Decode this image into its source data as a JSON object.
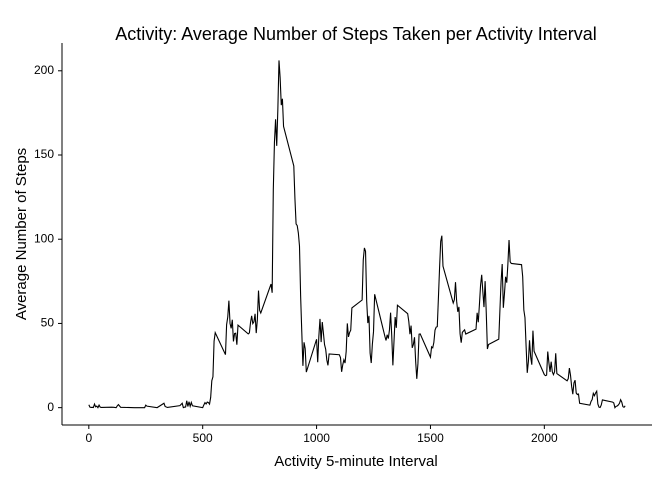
{
  "chart_data": {
    "type": "line",
    "title": "Activity: Average Number of Steps Taken per Activity Interval",
    "x_label": "Activity 5-minute Interval",
    "y_label": "Average Number of Steps",
    "xlim": [
      -117.75,
      2472.75
    ],
    "xticks": [
      0,
      500,
      1000,
      1500,
      2000
    ],
    "ylim": [
      -10.3,
      216.5
    ],
    "yticks": [
      0,
      50,
      100,
      150,
      200
    ],
    "series": [
      {
        "color": "#000000",
        "x": [
          0,
          5,
          10,
          15,
          20,
          25,
          30,
          35,
          40,
          45,
          50,
          55,
          100,
          110,
          120,
          125,
          130,
          140,
          200,
          230,
          245,
          250,
          255,
          300,
          330,
          335,
          345,
          400,
          410,
          415,
          420,
          425,
          430,
          435,
          440,
          445,
          450,
          455,
          500,
          505,
          510,
          515,
          520,
          525,
          530,
          535,
          540,
          545,
          550,
          555,
          600,
          605,
          610,
          615,
          620,
          625,
          630,
          635,
          640,
          645,
          650,
          655,
          700,
          705,
          710,
          715,
          720,
          725,
          730,
          735,
          740,
          745,
          750,
          755,
          800,
          805,
          810,
          815,
          820,
          825,
          830,
          835,
          840,
          845,
          850,
          855,
          900,
          905,
          910,
          915,
          920,
          925,
          930,
          935,
          940,
          945,
          950,
          955,
          1000,
          1005,
          1010,
          1015,
          1020,
          1025,
          1030,
          1035,
          1040,
          1045,
          1050,
          1055,
          1100,
          1105,
          1110,
          1115,
          1120,
          1125,
          1130,
          1135,
          1140,
          1145,
          1150,
          1155,
          1200,
          1205,
          1210,
          1215,
          1220,
          1225,
          1230,
          1235,
          1240,
          1245,
          1250,
          1255,
          1300,
          1305,
          1310,
          1315,
          1320,
          1325,
          1330,
          1335,
          1340,
          1345,
          1350,
          1355,
          1400,
          1405,
          1410,
          1415,
          1420,
          1425,
          1430,
          1435,
          1440,
          1445,
          1450,
          1455,
          1500,
          1505,
          1510,
          1515,
          1520,
          1525,
          1530,
          1535,
          1540,
          1545,
          1550,
          1555,
          1600,
          1605,
          1610,
          1615,
          1620,
          1625,
          1630,
          1635,
          1640,
          1645,
          1650,
          1655,
          1700,
          1705,
          1710,
          1715,
          1720,
          1725,
          1730,
          1735,
          1740,
          1745,
          1750,
          1755,
          1800,
          1805,
          1810,
          1815,
          1820,
          1825,
          1830,
          1835,
          1840,
          1845,
          1850,
          1855,
          1900,
          1905,
          1910,
          1915,
          1920,
          1925,
          1930,
          1935,
          1940,
          1945,
          1950,
          1955,
          2000,
          2005,
          2010,
          2015,
          2020,
          2025,
          2030,
          2035,
          2040,
          2045,
          2050,
          2055,
          2100,
          2105,
          2110,
          2115,
          2120,
          2125,
          2130,
          2135,
          2140,
          2145,
          2150,
          2155,
          2200,
          2205,
          2210,
          2215,
          2220,
          2225,
          2230,
          2235,
          2240,
          2245,
          2250,
          2255,
          2300,
          2305,
          2310,
          2315,
          2320,
          2325,
          2330,
          2335,
          2340,
          2345,
          2350,
          2355
        ],
        "values": [
          1.7,
          0.3,
          0.1,
          0.2,
          0.1,
          2.1,
          0.5,
          0.9,
          0,
          1.5,
          0.3,
          0.1,
          0.3,
          0.2,
          0,
          1.1,
          1.8,
          0.2,
          0,
          0,
          0,
          1.5,
          0.9,
          0,
          2.6,
          0.7,
          0.1,
          1.2,
          2.6,
          0,
          0.3,
          0.4,
          4.1,
          0.7,
          3.5,
          0.8,
          3.1,
          1.1,
          0,
          1.6,
          3,
          2.2,
          3.3,
          3,
          2.1,
          6.1,
          16,
          18.3,
          39.5,
          44.5,
          31.5,
          49.3,
          53.8,
          63.5,
          50,
          47.1,
          52.2,
          39.3,
          44,
          44.2,
          37.4,
          49,
          43.8,
          44.4,
          50.5,
          54.5,
          49.9,
          51,
          55.7,
          44.3,
          52.3,
          69.5,
          57.8,
          56.2,
          73.4,
          68.2,
          129.4,
          157.5,
          171.2,
          155.4,
          177.3,
          206.2,
          195.9,
          179.6,
          183.4,
          167,
          143.5,
          124,
          109.1,
          108.1,
          103.7,
          95.9,
          66.2,
          45.2,
          24.8,
          38.8,
          35,
          21.1,
          40.6,
          27,
          42.4,
          52.7,
          38.9,
          50.8,
          44.3,
          37.4,
          34.7,
          28.3,
          25.1,
          31.9,
          31.4,
          29.7,
          21.3,
          25.5,
          28.4,
          26.5,
          33.4,
          50,
          42,
          44.6,
          46,
          59.2,
          63.9,
          87.7,
          94.8,
          92.8,
          63.4,
          50.2,
          54.5,
          32.4,
          26.5,
          37.7,
          45.1,
          67.3,
          42.3,
          39.9,
          43.3,
          41,
          46.2,
          56.4,
          42.8,
          25.1,
          39.5,
          53.8,
          47.4,
          60.8,
          55.8,
          51.1,
          43.6,
          48.7,
          35.5,
          37.5,
          41.8,
          27.5,
          17.1,
          26.1,
          43.6,
          43.8,
          30,
          36.1,
          35.5,
          38.8,
          46,
          47.8,
          48.1,
          65.3,
          82.9,
          98.7,
          102.1,
          84,
          62.1,
          64.1,
          74.5,
          63.2,
          56.9,
          59.8,
          43.9,
          38.6,
          44.7,
          45.5,
          46.2,
          43.7,
          46.6,
          56.3,
          50.7,
          61.2,
          72.7,
          78.9,
          68.9,
          59.7,
          75.1,
          56.5,
          34.8,
          37.5,
          40.7,
          58,
          74.7,
          85.3,
          59.3,
          67.8,
          77.7,
          74.2,
          85.3,
          99.5,
          86.6,
          85.6,
          84.9,
          77.8,
          58,
          53.4,
          36.3,
          20.7,
          27.4,
          40,
          30.2,
          25.5,
          45.7,
          33.5,
          19.6,
          19,
          19.3,
          33.3,
          26.8,
          21.2,
          27.3,
          21.3,
          19.6,
          21.3,
          32.3,
          20.2,
          15.9,
          17.2,
          23.5,
          19.2,
          12.5,
          8,
          14.7,
          16.3,
          8.7,
          7.8,
          8.1,
          2.6,
          1.5,
          3.7,
          4.8,
          8.5,
          7.1,
          8.7,
          9.8,
          2.2,
          0.3,
          0.1,
          1.6,
          4.6,
          3.3,
          2.8,
          0,
          0.8,
          1,
          1.6,
          2.6,
          4.7,
          3.3,
          0.6,
          0.2,
          1.1
        ]
      }
    ]
  }
}
